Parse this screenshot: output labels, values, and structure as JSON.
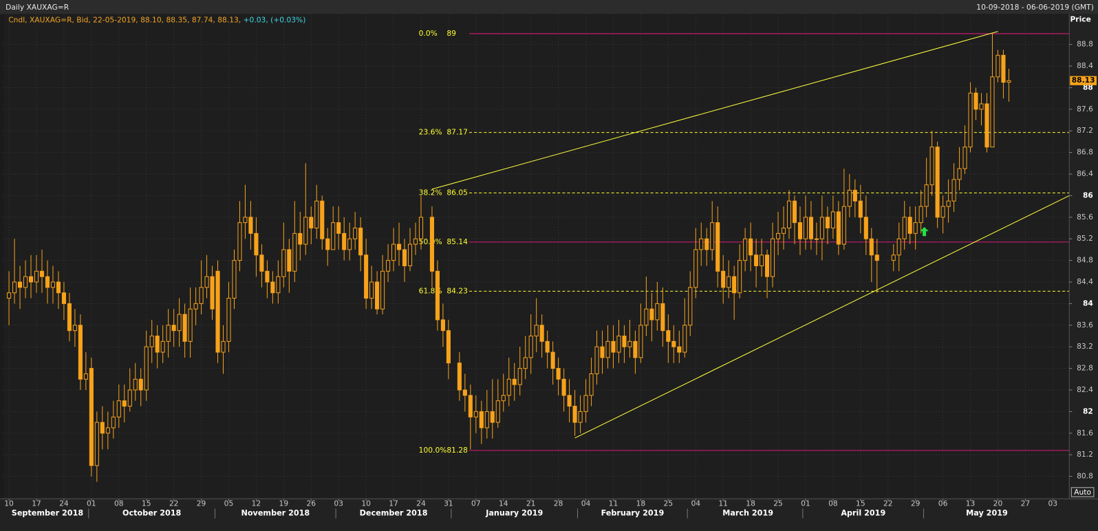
{
  "chart_data": {
    "type": "candlestick",
    "title": "Daily XAUXAG=R",
    "date_range": "10-09-2018 - 06-06-2019 (GMT)",
    "info": "Cndl, XAUXAG=R, Bid, 22-05-2019, 88.10, 88.35, 87.74, 88.13,",
    "change": "+0.03, (+0.03%)",
    "y_axis_label": "Price",
    "autoscale_label": "Auto",
    "color": "#f7a21b",
    "x": [
      "10-09-2018",
      "11-09-2018",
      "12-09-2018",
      "13-09-2018",
      "14-09-2018",
      "17-09-2018",
      "18-09-2018",
      "19-09-2018",
      "20-09-2018",
      "21-09-2018",
      "24-09-2018",
      "25-09-2018",
      "26-09-2018",
      "27-09-2018",
      "28-09-2018",
      "01-10-2018",
      "02-10-2018",
      "03-10-2018",
      "04-10-2018",
      "05-10-2018",
      "08-10-2018",
      "09-10-2018",
      "10-10-2018",
      "11-10-2018",
      "12-10-2018",
      "15-10-2018",
      "16-10-2018",
      "17-10-2018",
      "18-10-2018",
      "19-10-2018",
      "22-10-2018",
      "23-10-2018",
      "24-10-2018",
      "25-10-2018",
      "26-10-2018",
      "29-10-2018",
      "30-10-2018",
      "31-10-2018",
      "01-11-2018",
      "02-11-2018",
      "05-11-2018",
      "06-11-2018",
      "07-11-2018",
      "08-11-2018",
      "09-11-2018",
      "12-11-2018",
      "13-11-2018",
      "14-11-2018",
      "15-11-2018",
      "16-11-2018",
      "19-11-2018",
      "20-11-2018",
      "21-11-2018",
      "22-11-2018",
      "23-11-2018",
      "26-11-2018",
      "27-11-2018",
      "28-11-2018",
      "29-11-2018",
      "30-11-2018",
      "03-12-2018",
      "04-12-2018",
      "05-12-2018",
      "06-12-2018",
      "07-12-2018",
      "10-12-2018",
      "11-12-2018",
      "12-12-2018",
      "13-12-2018",
      "14-12-2018",
      "17-12-2018",
      "18-12-2018",
      "19-12-2018",
      "20-12-2018",
      "21-12-2018",
      "24-12-2018",
      "26-12-2018",
      "27-12-2018",
      "28-12-2018",
      "31-12-2018",
      "02-01-2019",
      "03-01-2019",
      "04-01-2019",
      "07-01-2019",
      "08-01-2019",
      "09-01-2019",
      "10-01-2019",
      "11-01-2019",
      "14-01-2019",
      "15-01-2019",
      "16-01-2019",
      "17-01-2019",
      "18-01-2019",
      "21-01-2019",
      "22-01-2019",
      "23-01-2019",
      "24-01-2019",
      "25-01-2019",
      "28-01-2019",
      "29-01-2019",
      "30-01-2019",
      "31-01-2019",
      "01-02-2019",
      "04-02-2019",
      "05-02-2019",
      "06-02-2019",
      "07-02-2019",
      "08-02-2019",
      "11-02-2019",
      "12-02-2019",
      "13-02-2019",
      "14-02-2019",
      "15-02-2019",
      "18-02-2019",
      "19-02-2019",
      "20-02-2019",
      "21-02-2019",
      "22-02-2019",
      "25-02-2019",
      "26-02-2019",
      "27-02-2019",
      "28-02-2019",
      "01-03-2019",
      "04-03-2019",
      "05-03-2019",
      "06-03-2019",
      "07-03-2019",
      "08-03-2019",
      "11-03-2019",
      "12-03-2019",
      "13-03-2019",
      "14-03-2019",
      "15-03-2019",
      "18-03-2019",
      "19-03-2019",
      "20-03-2019",
      "21-03-2019",
      "22-03-2019",
      "25-03-2019",
      "26-03-2019",
      "27-03-2019",
      "28-03-2019",
      "29-03-2019",
      "01-04-2019",
      "02-04-2019",
      "03-04-2019",
      "04-04-2019",
      "05-04-2019",
      "08-04-2019",
      "09-04-2019",
      "10-04-2019",
      "11-04-2019",
      "12-04-2019",
      "15-04-2019",
      "16-04-2019",
      "17-04-2019",
      "18-04-2019",
      "23-04-2019",
      "24-04-2019",
      "25-04-2019",
      "26-04-2019",
      "29-04-2019",
      "30-04-2019",
      "01-05-2019",
      "02-05-2019",
      "03-05-2019",
      "06-05-2019",
      "07-05-2019",
      "08-05-2019",
      "09-05-2019",
      "10-05-2019",
      "13-05-2019",
      "14-05-2019",
      "15-05-2019",
      "16-05-2019",
      "17-05-2019",
      "20-05-2019",
      "21-05-2019",
      "22-05-2019"
    ],
    "open": [
      84.1,
      84.2,
      84.4,
      84.3,
      84.5,
      84.4,
      84.6,
      84.5,
      84.3,
      84.4,
      84.2,
      84.0,
      83.5,
      83.6,
      82.6,
      82.8,
      81.0,
      81.8,
      81.6,
      81.7,
      81.9,
      82.2,
      82.1,
      82.4,
      82.6,
      82.4,
      83.2,
      83.4,
      83.1,
      83.3,
      83.6,
      83.5,
      83.8,
      83.3,
      83.9,
      84.0,
      84.3,
      84.5,
      84.6,
      83.1,
      83.3,
      84.1,
      84.8,
      85.5,
      85.6,
      85.3,
      84.9,
      84.6,
      84.4,
      84.2,
      84.5,
      85.0,
      84.6,
      85.3,
      85.1,
      85.6,
      85.4,
      85.9,
      85.2,
      85.0,
      85.5,
      85.3,
      85.0,
      85.2,
      85.4,
      84.9,
      84.1,
      84.4,
      83.9,
      84.6,
      84.8,
      85.1,
      85.0,
      84.7,
      85.1,
      85.2,
      85.6,
      84.6,
      83.7,
      83.5,
      82.9,
      82.4,
      82.3,
      81.9,
      82.0,
      81.7,
      82.0,
      81.8,
      82.2,
      82.3,
      82.6,
      82.5,
      82.8,
      83.0,
      83.4,
      83.6,
      83.3,
      83.1,
      82.8,
      82.6,
      82.3,
      82.1,
      81.8,
      82.0,
      82.3,
      82.7,
      83.2,
      83.0,
      83.3,
      83.1,
      83.4,
      83.2,
      83.3,
      83.0,
      83.6,
      83.9,
      83.7,
      84.0,
      83.5,
      83.3,
      83.2,
      83.1,
      83.6,
      84.3,
      85.0,
      85.2,
      85.0,
      85.5,
      84.6,
      84.3,
      84.5,
      84.2,
      84.8,
      85.2,
      84.9,
      84.7,
      84.9,
      84.5,
      85.2,
      85.3,
      85.4,
      85.9,
      85.5,
      85.2,
      85.6,
      85.2,
      85.2,
      85.6,
      85.4,
      85.7,
      85.1,
      85.8,
      86.1,
      85.9,
      85.6,
      85.2,
      84.9,
      84.8,
      84.9,
      85.2,
      85.6,
      85.3,
      85.5,
      85.8,
      86.2,
      86.9,
      85.6,
      85.8,
      85.9,
      86.3,
      86.5,
      86.9,
      87.9,
      87.6,
      87.7,
      86.9,
      88.2,
      88.6,
      88.1
    ],
    "high": [
      84.6,
      85.2,
      84.7,
      84.8,
      84.9,
      84.9,
      85.0,
      84.8,
      84.7,
      84.6,
      84.4,
      84.2,
      83.9,
      83.8,
      83.1,
      83.0,
      82.0,
      82.1,
      82.0,
      82.2,
      82.5,
      82.5,
      82.8,
      82.9,
      82.8,
      83.5,
      83.7,
      83.6,
      83.6,
      83.9,
      83.9,
      84.1,
      84.0,
      84.3,
      84.3,
      84.8,
      84.9,
      84.7,
      84.8,
      83.6,
      84.4,
      85.0,
      85.9,
      86.2,
      85.9,
      85.6,
      85.1,
      84.8,
      84.6,
      84.8,
      85.5,
      85.2,
      85.9,
      85.7,
      86.6,
      85.8,
      86.2,
      86.0,
      85.4,
      85.8,
      85.8,
      85.6,
      85.5,
      85.7,
      85.6,
      85.2,
      84.7,
      84.6,
      84.9,
      85.1,
      85.4,
      85.5,
      85.2,
      85.4,
      85.5,
      86.0,
      85.8,
      84.8,
      84.0,
      83.7,
      83.1,
      82.7,
      82.5,
      82.3,
      82.2,
      82.4,
      82.6,
      82.6,
      82.7,
      83.0,
      82.9,
      83.2,
      83.4,
      83.8,
      84.1,
      83.8,
      83.5,
      83.3,
      83.0,
      82.8,
      82.6,
      82.4,
      82.3,
      82.6,
      83.0,
      83.5,
      83.5,
      83.6,
      83.6,
      83.7,
      83.6,
      83.7,
      83.5,
      84.0,
      84.5,
      84.2,
      84.4,
      84.3,
      83.8,
      83.6,
      83.5,
      84.1,
      84.6,
      85.4,
      85.5,
      85.4,
      85.9,
      85.8,
      84.9,
      84.8,
      84.7,
      85.1,
      85.4,
      85.5,
      85.2,
      85.2,
      85.0,
      85.5,
      85.7,
      85.8,
      86.1,
      86.0,
      85.8,
      86.0,
      85.9,
      85.5,
      86.0,
      85.8,
      86.0,
      85.9,
      86.5,
      86.4,
      86.3,
      86.2,
      86.0,
      85.4,
      85.2,
      85.1,
      85.5,
      85.9,
      85.8,
      85.8,
      86.1,
      86.7,
      87.2,
      87.0,
      86.0,
      86.3,
      86.6,
      86.9,
      87.3,
      88.1,
      88.0,
      87.9,
      87.9,
      89.0,
      88.7,
      88.7,
      88.35
    ],
    "low": [
      83.6,
      84.0,
      83.9,
      84.1,
      84.1,
      84.2,
      84.2,
      84.0,
      84.0,
      83.9,
      83.7,
      83.3,
      83.2,
      82.4,
      82.4,
      80.8,
      80.7,
      81.3,
      81.3,
      81.5,
      81.7,
      81.8,
      82.0,
      82.2,
      82.1,
      82.2,
      82.9,
      82.8,
      82.9,
      83.0,
      83.2,
      83.2,
      83.0,
      83.0,
      83.6,
      83.8,
      84.1,
      83.7,
      82.9,
      82.7,
      83.1,
      83.9,
      84.6,
      85.2,
      85.0,
      84.5,
      84.3,
      84.1,
      84.0,
      84.0,
      84.3,
      84.2,
      84.4,
      84.8,
      84.9,
      85.1,
      85.2,
      85.0,
      84.7,
      85.0,
      85.0,
      84.8,
      84.8,
      85.0,
      84.6,
      83.9,
      83.9,
      83.8,
      83.8,
      84.4,
      84.6,
      84.7,
      84.4,
      84.6,
      84.9,
      85.0,
      84.3,
      83.5,
      83.2,
      82.6,
      82.2,
      82.0,
      81.3,
      81.6,
      81.4,
      81.5,
      81.5,
      81.7,
      82.0,
      82.1,
      82.2,
      82.3,
      82.6,
      82.7,
      83.1,
      83.0,
      82.8,
      82.5,
      82.3,
      82.0,
      81.8,
      81.55,
      81.6,
      81.8,
      82.1,
      82.5,
      82.7,
      82.8,
      82.8,
      82.9,
      82.9,
      83.0,
      82.7,
      82.9,
      83.4,
      83.3,
      83.5,
      83.2,
      82.9,
      82.9,
      82.9,
      83.0,
      83.4,
      84.1,
      84.7,
      84.7,
      84.8,
      84.3,
      84.0,
      84.1,
      83.7,
      84.1,
      84.6,
      84.6,
      84.3,
      84.5,
      84.1,
      84.3,
      84.9,
      85.0,
      85.2,
      85.1,
      84.9,
      85.0,
      85.0,
      84.9,
      84.8,
      85.1,
      85.2,
      84.9,
      85.0,
      85.6,
      85.6,
      85.3,
      84.9,
      84.4,
      84.2,
      84.6,
      84.6,
      85.0,
      85.1,
      85.0,
      85.3,
      85.6,
      86.0,
      85.4,
      85.3,
      85.5,
      85.7,
      86.1,
      86.4,
      86.8,
      87.4,
      87.3,
      86.8,
      86.9,
      88.1,
      87.8,
      87.74
    ],
    "close": [
      84.2,
      84.4,
      84.3,
      84.5,
      84.4,
      84.6,
      84.5,
      84.3,
      84.4,
      84.2,
      84.0,
      83.5,
      83.6,
      82.6,
      82.7,
      81.0,
      81.8,
      81.6,
      81.7,
      81.9,
      82.2,
      82.1,
      82.4,
      82.6,
      82.4,
      83.2,
      83.4,
      83.1,
      83.3,
      83.6,
      83.5,
      83.8,
      83.3,
      83.9,
      84.0,
      84.3,
      84.5,
      83.9,
      83.1,
      83.3,
      84.1,
      84.8,
      85.5,
      85.6,
      85.3,
      84.9,
      84.6,
      84.4,
      84.2,
      84.5,
      85.0,
      84.6,
      85.3,
      85.1,
      85.6,
      85.4,
      85.9,
      85.2,
      85.0,
      85.5,
      85.3,
      85.0,
      85.2,
      85.4,
      84.9,
      84.1,
      84.4,
      83.9,
      84.6,
      84.8,
      85.1,
      85.0,
      84.7,
      85.1,
      85.2,
      85.6,
      84.6,
      83.7,
      83.5,
      82.9,
      82.4,
      82.3,
      81.9,
      82.0,
      81.7,
      82.0,
      81.8,
      82.2,
      82.3,
      82.6,
      82.5,
      82.8,
      83.0,
      83.4,
      83.6,
      83.3,
      83.1,
      82.8,
      82.6,
      82.3,
      82.1,
      81.8,
      82.0,
      82.3,
      82.7,
      83.2,
      83.0,
      83.3,
      83.1,
      83.4,
      83.2,
      83.3,
      83.0,
      83.6,
      83.9,
      83.7,
      84.0,
      83.5,
      83.3,
      83.2,
      83.1,
      83.6,
      84.3,
      85.0,
      85.2,
      85.0,
      85.5,
      84.6,
      84.3,
      84.5,
      84.2,
      84.8,
      85.2,
      84.9,
      84.7,
      84.9,
      84.5,
      85.2,
      85.3,
      85.4,
      85.9,
      85.5,
      85.2,
      85.6,
      85.2,
      85.2,
      85.6,
      85.4,
      85.7,
      85.1,
      85.8,
      86.1,
      85.9,
      85.6,
      85.2,
      84.9,
      84.8,
      84.9,
      85.2,
      85.6,
      85.3,
      85.5,
      85.8,
      86.2,
      86.9,
      85.6,
      85.8,
      85.9,
      86.3,
      86.5,
      86.9,
      87.9,
      87.6,
      87.7,
      86.9,
      88.2,
      88.6,
      88.1,
      88.13
    ],
    "xlim": [
      "07-09-2018",
      "06-06-2019"
    ],
    "xticks": [
      {
        "value": "10-09-2018",
        "label": "10"
      },
      {
        "value": "17-09-2018",
        "label": "17"
      },
      {
        "value": "24-09-2018",
        "label": "24"
      },
      {
        "value": "01-10-2018",
        "label": "01"
      },
      {
        "value": "08-10-2018",
        "label": "08"
      },
      {
        "value": "15-10-2018",
        "label": "15"
      },
      {
        "value": "22-10-2018",
        "label": "22"
      },
      {
        "value": "29-10-2018",
        "label": "29"
      },
      {
        "value": "05-11-2018",
        "label": "05"
      },
      {
        "value": "12-11-2018",
        "label": "12"
      },
      {
        "value": "19-11-2018",
        "label": "19"
      },
      {
        "value": "26-11-2018",
        "label": "26"
      },
      {
        "value": "03-12-2018",
        "label": "03"
      },
      {
        "value": "10-12-2018",
        "label": "10"
      },
      {
        "value": "17-12-2018",
        "label": "17"
      },
      {
        "value": "24-12-2018",
        "label": "24"
      },
      {
        "value": "31-12-2018",
        "label": "31"
      },
      {
        "value": "07-01-2019",
        "label": "07"
      },
      {
        "value": "14-01-2019",
        "label": "14"
      },
      {
        "value": "21-01-2019",
        "label": "21"
      },
      {
        "value": "28-01-2019",
        "label": "28"
      },
      {
        "value": "04-02-2019",
        "label": "04"
      },
      {
        "value": "11-02-2019",
        "label": "11"
      },
      {
        "value": "18-02-2019",
        "label": "18"
      },
      {
        "value": "25-02-2019",
        "label": "25"
      },
      {
        "value": "04-03-2019",
        "label": "04"
      },
      {
        "value": "11-03-2019",
        "label": "11"
      },
      {
        "value": "18-03-2019",
        "label": "18"
      },
      {
        "value": "25-03-2019",
        "label": "25"
      },
      {
        "value": "01-04-2019",
        "label": "01"
      },
      {
        "value": "08-04-2019",
        "label": "08"
      },
      {
        "value": "15-04-2019",
        "label": "15"
      },
      {
        "value": "22-04-2019",
        "label": "22"
      },
      {
        "value": "29-04-2019",
        "label": "29"
      },
      {
        "value": "06-05-2019",
        "label": "06"
      },
      {
        "value": "13-05-2019",
        "label": "13"
      },
      {
        "value": "20-05-2019",
        "label": "20"
      },
      {
        "value": "27-05-2019",
        "label": "27"
      },
      {
        "value": "03-06-2019",
        "label": "03"
      }
    ],
    "months": [
      "September 2018",
      "October 2018",
      "November 2018",
      "December 2018",
      "January 2019",
      "February 2019",
      "March 2019",
      "April 2019",
      "May 2019"
    ],
    "ylim": [
      80.385,
      89.364
    ],
    "yticks": [
      80.8,
      81.2,
      81.6,
      82,
      82.4,
      82.8,
      83.2,
      83.6,
      84,
      84.4,
      84.8,
      85.2,
      85.6,
      86,
      86.4,
      86.8,
      87.2,
      87.6,
      88,
      88.4,
      88.8
    ],
    "grid": true,
    "fibonacci": [
      {
        "level": "0.0%",
        "value": 89,
        "color": "#d81b7a",
        "dashed": false
      },
      {
        "level": "23.6%",
        "value": 87.17,
        "color": "#ffff33",
        "dashed": true
      },
      {
        "level": "38.2%",
        "value": 86.05,
        "color": "#ffff33",
        "dashed": true
      },
      {
        "level": "50.0%",
        "value": 85.14,
        "color": "#d81b7a",
        "dashed": false
      },
      {
        "level": "61.8%",
        "value": 84.23,
        "color": "#ffff33",
        "dashed": true
      },
      {
        "level": "100.0%",
        "value": 81.28,
        "color": "#d81b7a",
        "dashed": false
      }
    ],
    "trendlines": [
      {
        "x": [
          "26-12-2018",
          "20-05-2019"
        ],
        "y": [
          86.12,
          89.04
        ],
        "color": "#ffff40"
      },
      {
        "x": [
          "31-01-2019",
          "06-06-2019"
        ],
        "y": [
          81.51,
          86.0
        ],
        "color": "#ffff40"
      }
    ]
  }
}
